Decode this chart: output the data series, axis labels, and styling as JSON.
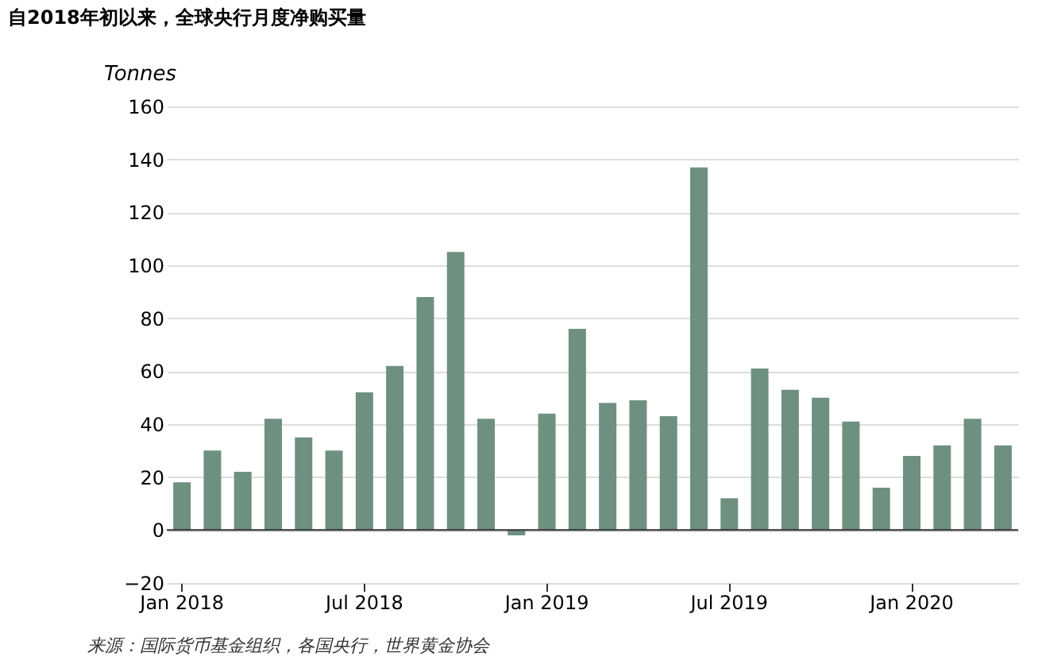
{
  "chart_data": {
    "type": "bar",
    "title": "自2018年初以来，全球央行月度净购买量",
    "ylabel": "Tonnes",
    "categories": [
      "Jan 2018",
      null,
      null,
      null,
      null,
      null,
      "Jul 2018",
      null,
      null,
      null,
      null,
      null,
      "Jan 2019",
      null,
      null,
      null,
      null,
      null,
      "Jul 2019",
      null,
      null,
      null,
      null,
      null,
      "Jan 2020",
      null,
      null,
      null
    ],
    "values": [
      18,
      30,
      22,
      42,
      35,
      30,
      52,
      62,
      88,
      105,
      42,
      -2,
      44,
      76,
      48,
      49,
      43,
      137,
      12,
      61,
      53,
      50,
      41,
      16,
      28,
      32,
      42,
      32
    ],
    "color": "#6e9080",
    "ylim": [
      -20,
      160
    ],
    "yticks": [
      -20,
      0,
      20,
      40,
      60,
      80,
      100,
      120,
      140,
      160
    ],
    "grid": "y",
    "annotations": [
      "来源：国际货币基金组织，各国央行，世界黄金协会"
    ]
  }
}
